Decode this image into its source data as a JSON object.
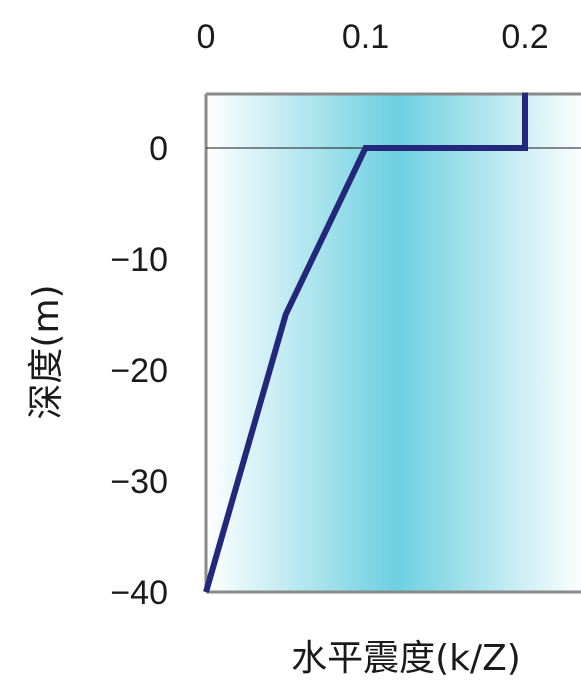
{
  "chart_data": {
    "type": "line",
    "title": "",
    "xlabel": "水平震度(k/Z)",
    "ylabel": "深度(m)",
    "xlim": [
      0,
      0.2
    ],
    "ylim": [
      -40,
      5
    ],
    "xticks": [
      {
        "value": 0,
        "label": "0"
      },
      {
        "value": 0.1,
        "label": "0.1"
      },
      {
        "value": 0.2,
        "label": "0.2"
      }
    ],
    "yticks": [
      {
        "value": 0,
        "label": "0"
      },
      {
        "value": -10,
        "label": "−10"
      },
      {
        "value": -20,
        "label": "−20"
      },
      {
        "value": -30,
        "label": "−30"
      },
      {
        "value": -40,
        "label": "−40"
      }
    ],
    "x_axis_position": "top",
    "grid": false,
    "reference_line_y": 0,
    "series": [
      {
        "name": "",
        "color": "#23287a",
        "points": [
          {
            "x": 0.2,
            "y": 5
          },
          {
            "x": 0.2,
            "y": 0
          },
          {
            "x": 0.1,
            "y": 0
          },
          {
            "x": 0.05,
            "y": -15
          },
          {
            "x": 0.0,
            "y": -40
          }
        ]
      }
    ],
    "background_gradient": [
      "#ffffff",
      "#6ccfe0",
      "#ffffff"
    ],
    "frame_color": "#8a8a8a",
    "zero_line_color": "#1a1a1a"
  }
}
